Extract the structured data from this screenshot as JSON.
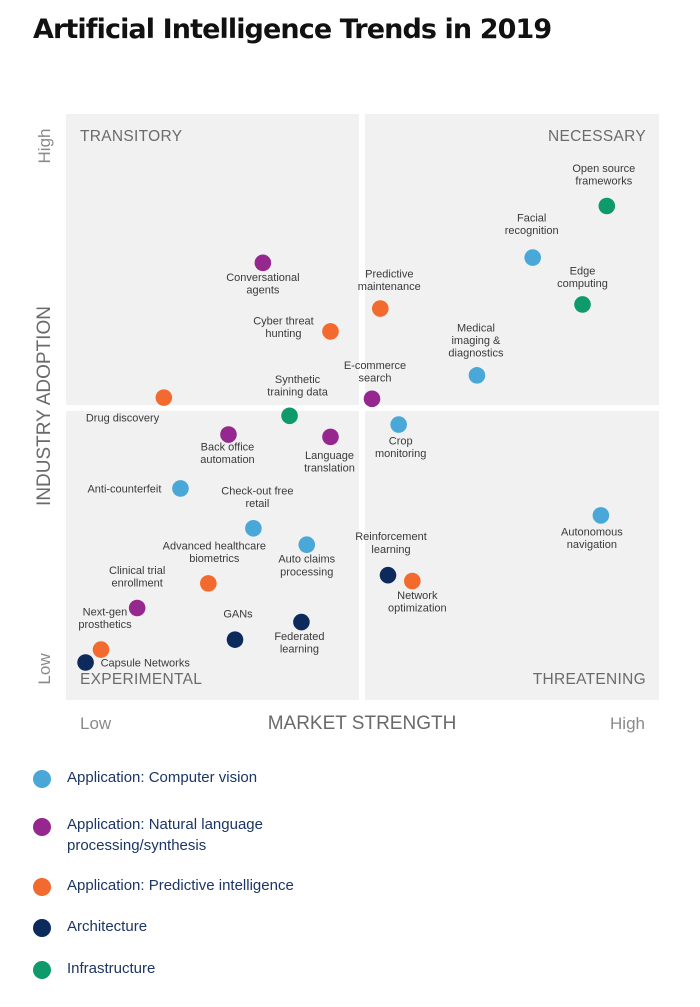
{
  "chart_data": {
    "type": "scatter",
    "title": "Artificial Intelligence Trends in 2019",
    "xlabel": "MARKET STRENGTH",
    "ylabel": "INDUSTRY ADOPTION",
    "x_low": "Low",
    "x_high": "High",
    "y_low": "Low",
    "y_high": "High",
    "xlim": [
      0,
      100
    ],
    "ylim": [
      0,
      100
    ],
    "quadrants": {
      "top_left": "TRANSITORY",
      "top_right": "NECESSARY",
      "bottom_left": "EXPERIMENTAL",
      "bottom_right": "THREATENING"
    },
    "categories": [
      {
        "key": "cv",
        "name": "Application: Computer vision",
        "color": "#4aa8d8"
      },
      {
        "key": "nlp",
        "name": "Application: Natural language processing/synthesis",
        "color": "#96278f"
      },
      {
        "key": "pi",
        "name": "Application: Predictive intelligence",
        "color": "#f26a2e"
      },
      {
        "key": "arch",
        "name": "Architecture",
        "color": "#0d2a5c"
      },
      {
        "key": "infra",
        "name": "Infrastructure",
        "color": "#0e9a6a"
      }
    ],
    "points": [
      {
        "label": "Open source\nframeworks",
        "category": "infra",
        "x": 91.2,
        "y": 84.3
      },
      {
        "label": "Facial\nrecognition",
        "category": "cv",
        "x": 78.7,
        "y": 75.5
      },
      {
        "label": "Edge\ncomputing",
        "category": "infra",
        "x": 87.1,
        "y": 67.5
      },
      {
        "label": "Conversational\nagents",
        "category": "nlp",
        "x": 33.2,
        "y": 74.6
      },
      {
        "label": "Predictive\nmaintenance",
        "category": "pi",
        "x": 53.0,
        "y": 66.8
      },
      {
        "label": "Cyber threat\nhunting",
        "category": "pi",
        "x": 44.6,
        "y": 62.9
      },
      {
        "label": "Medical\nimaging &\ndiagnostics",
        "category": "cv",
        "x": 69.3,
        "y": 55.4
      },
      {
        "label": "Synthetic\ntraining data",
        "category": "infra",
        "x": 37.7,
        "y": 48.5
      },
      {
        "label": "E-commerce\nsearch",
        "category": "nlp",
        "x": 51.6,
        "y": 51.4
      },
      {
        "label": "Drug discovery",
        "category": "pi",
        "x": 16.5,
        "y": 51.6
      },
      {
        "label": "Crop\nmonitoring",
        "category": "cv",
        "x": 56.1,
        "y": 47.0
      },
      {
        "label": "Back office\nautomation",
        "category": "nlp",
        "x": 27.4,
        "y": 45.3
      },
      {
        "label": "Language\ntranslation",
        "category": "nlp",
        "x": 44.6,
        "y": 44.9
      },
      {
        "label": "Anti-counterfeit",
        "category": "cv",
        "x": 19.3,
        "y": 36.1
      },
      {
        "label": "Check-out free\nretail",
        "category": "cv",
        "x": 31.6,
        "y": 29.3
      },
      {
        "label": "Autonomous\nnavigation",
        "category": "cv",
        "x": 90.2,
        "y": 31.5
      },
      {
        "label": "Auto claims\nprocessing",
        "category": "cv",
        "x": 40.6,
        "y": 26.5
      },
      {
        "label": "Advanced healthcare\nbiometrics",
        "category": "pi",
        "x": 24.0,
        "y": 19.9
      },
      {
        "label": "Reinforcement\nlearning",
        "category": "arch",
        "x": 54.3,
        "y": 21.3
      },
      {
        "label": "Network\noptimization",
        "category": "pi",
        "x": 58.4,
        "y": 20.3
      },
      {
        "label": "Clinical trial\nenrollment",
        "category": "nlp",
        "x": 12.0,
        "y": 15.7
      },
      {
        "label": "Federated\nlearning",
        "category": "arch",
        "x": 39.7,
        "y": 13.3
      },
      {
        "label": "GANs",
        "category": "arch",
        "x": 28.5,
        "y": 10.3
      },
      {
        "label": "Next-gen\nprosthetics",
        "category": "pi",
        "x": 5.9,
        "y": 8.6
      },
      {
        "label": "Capsule Networks",
        "category": "arch",
        "x": 3.3,
        "y": 6.4
      }
    ]
  }
}
